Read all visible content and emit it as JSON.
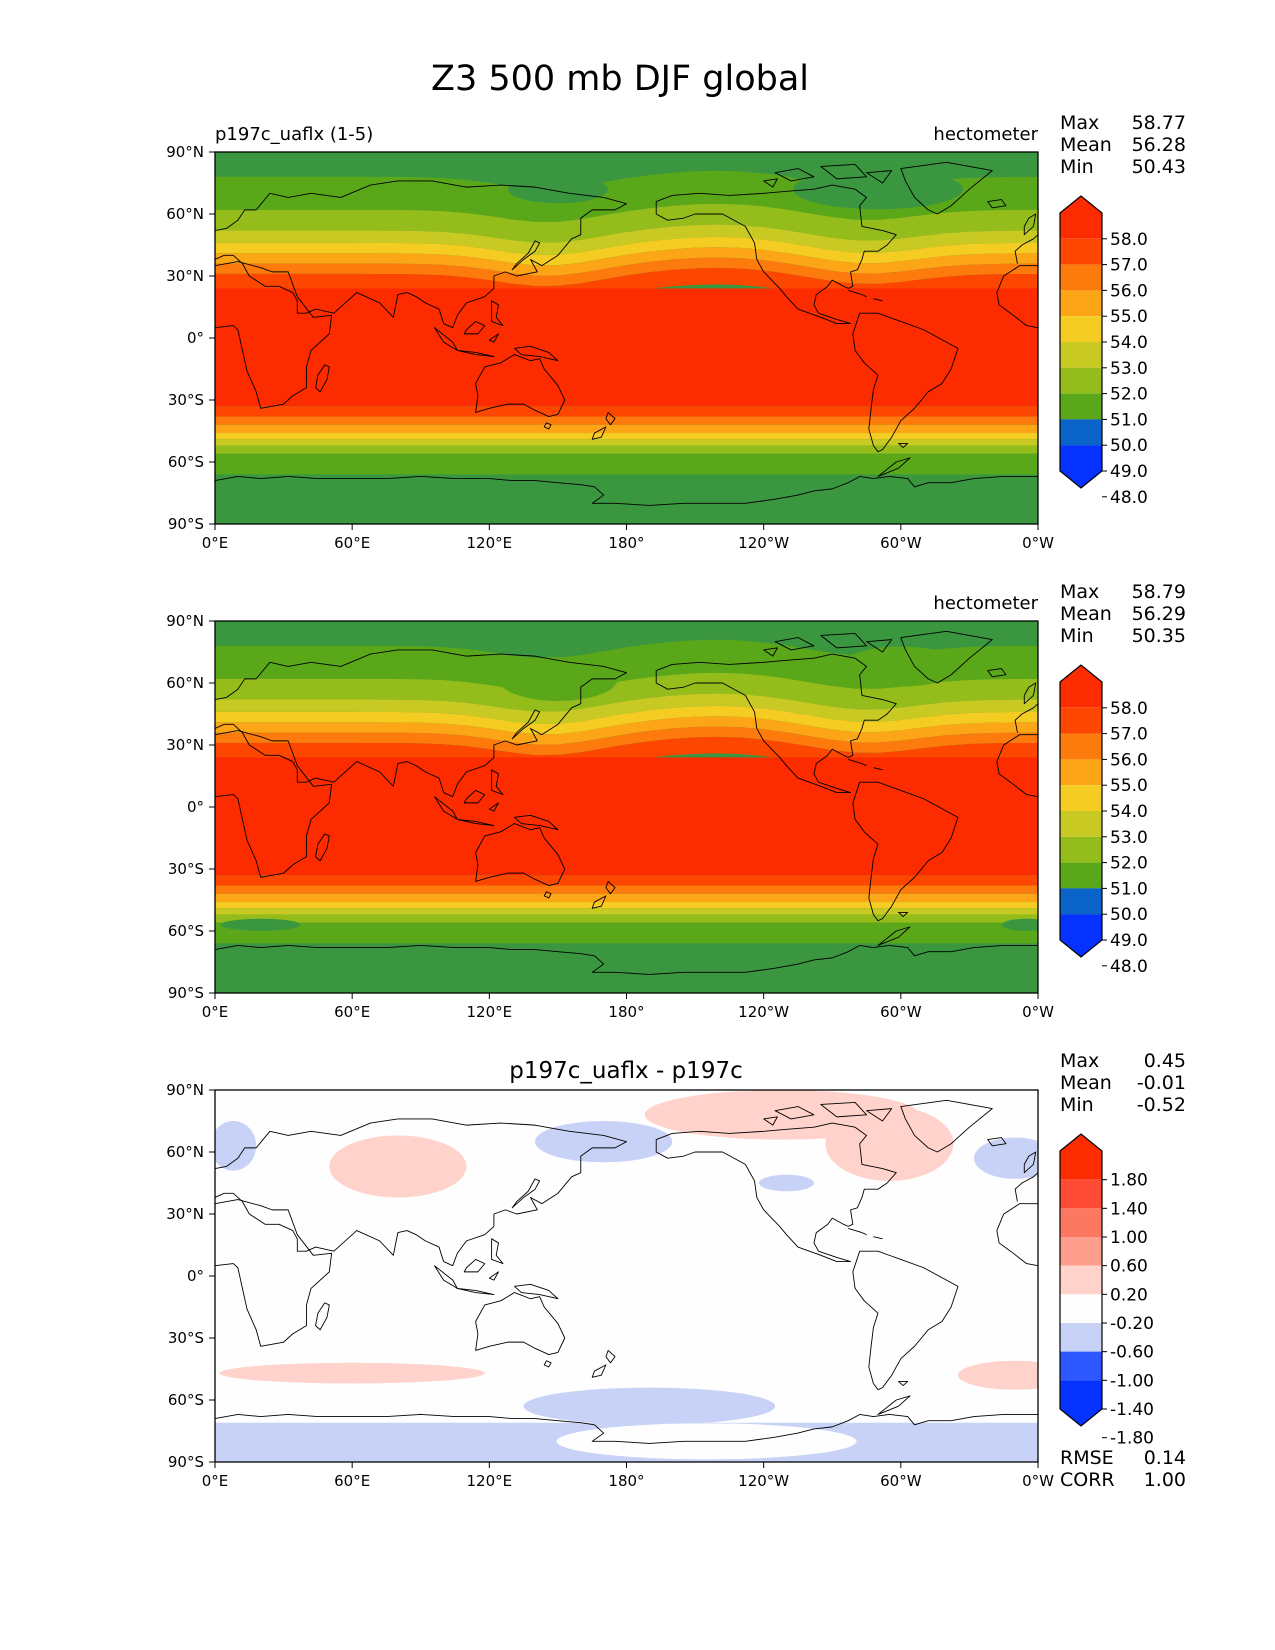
{
  "figure": {
    "title": "Z3 500 mb DJF global"
  },
  "colors": {
    "main": [
      "#0532ff",
      "#0a63c9",
      "#2a8181",
      "#3a963f",
      "#5aa81a",
      "#94bd1b",
      "#c8c922",
      "#f5cd22",
      "#fca617",
      "#fd7a0d",
      "#fd4700",
      "#fd2b00"
    ],
    "diff": [
      "#0532ff",
      "#2d58ff",
      "#5f82ff",
      "#9aaaf6",
      "#c8d2f7",
      "#fefefe",
      "#ffd3cc",
      "#fe9f8e",
      "#fd7860",
      "#fd4c33",
      "#fd2b00"
    ]
  },
  "panels": [
    {
      "left_label": "p197c_uaflx (1-5)",
      "center_label": "",
      "right_label": "hectometer",
      "stats": [
        {
          "label": "Max",
          "value": "58.77"
        },
        {
          "label": "Mean",
          "value": "56.28"
        },
        {
          "label": "Min",
          "value": "50.43"
        }
      ],
      "colorbar_ticks": [
        "58.0",
        "57.0",
        "56.0",
        "55.0",
        "54.0",
        "53.0",
        "52.0",
        "51.0",
        "50.0",
        "49.0",
        "48.0"
      ],
      "footer_stats": []
    },
    {
      "left_label": "",
      "center_label": "",
      "right_label": "hectometer",
      "stats": [
        {
          "label": "Max",
          "value": "58.79"
        },
        {
          "label": "Mean",
          "value": "56.29"
        },
        {
          "label": "Min",
          "value": "50.35"
        }
      ],
      "colorbar_ticks": [
        "58.0",
        "57.0",
        "56.0",
        "55.0",
        "54.0",
        "53.0",
        "52.0",
        "51.0",
        "50.0",
        "49.0",
        "48.0"
      ],
      "footer_stats": []
    },
    {
      "left_label": "",
      "center_label": "p197c_uaflx - p197c",
      "right_label": "",
      "stats": [
        {
          "label": "Max",
          "value": "0.45"
        },
        {
          "label": "Mean",
          "value": "-0.01"
        },
        {
          "label": "Min",
          "value": "-0.52"
        }
      ],
      "colorbar_ticks": [
        "1.80",
        "1.40",
        "1.00",
        "0.60",
        "0.20",
        "-0.20",
        "-0.60",
        "-1.00",
        "-1.40",
        "-1.80"
      ],
      "footer_stats": [
        {
          "label": "RMSE",
          "value": "0.14"
        },
        {
          "label": "CORR",
          "value": "1.00"
        }
      ]
    }
  ],
  "axes": {
    "lon_ticks": [
      "0°E",
      "60°E",
      "120°E",
      "180°",
      "120°W",
      "60°W",
      "0°W"
    ],
    "lat_ticks": [
      "90°N",
      "60°N",
      "30°N",
      "0°",
      "30°S",
      "60°S",
      "90°S"
    ]
  }
}
